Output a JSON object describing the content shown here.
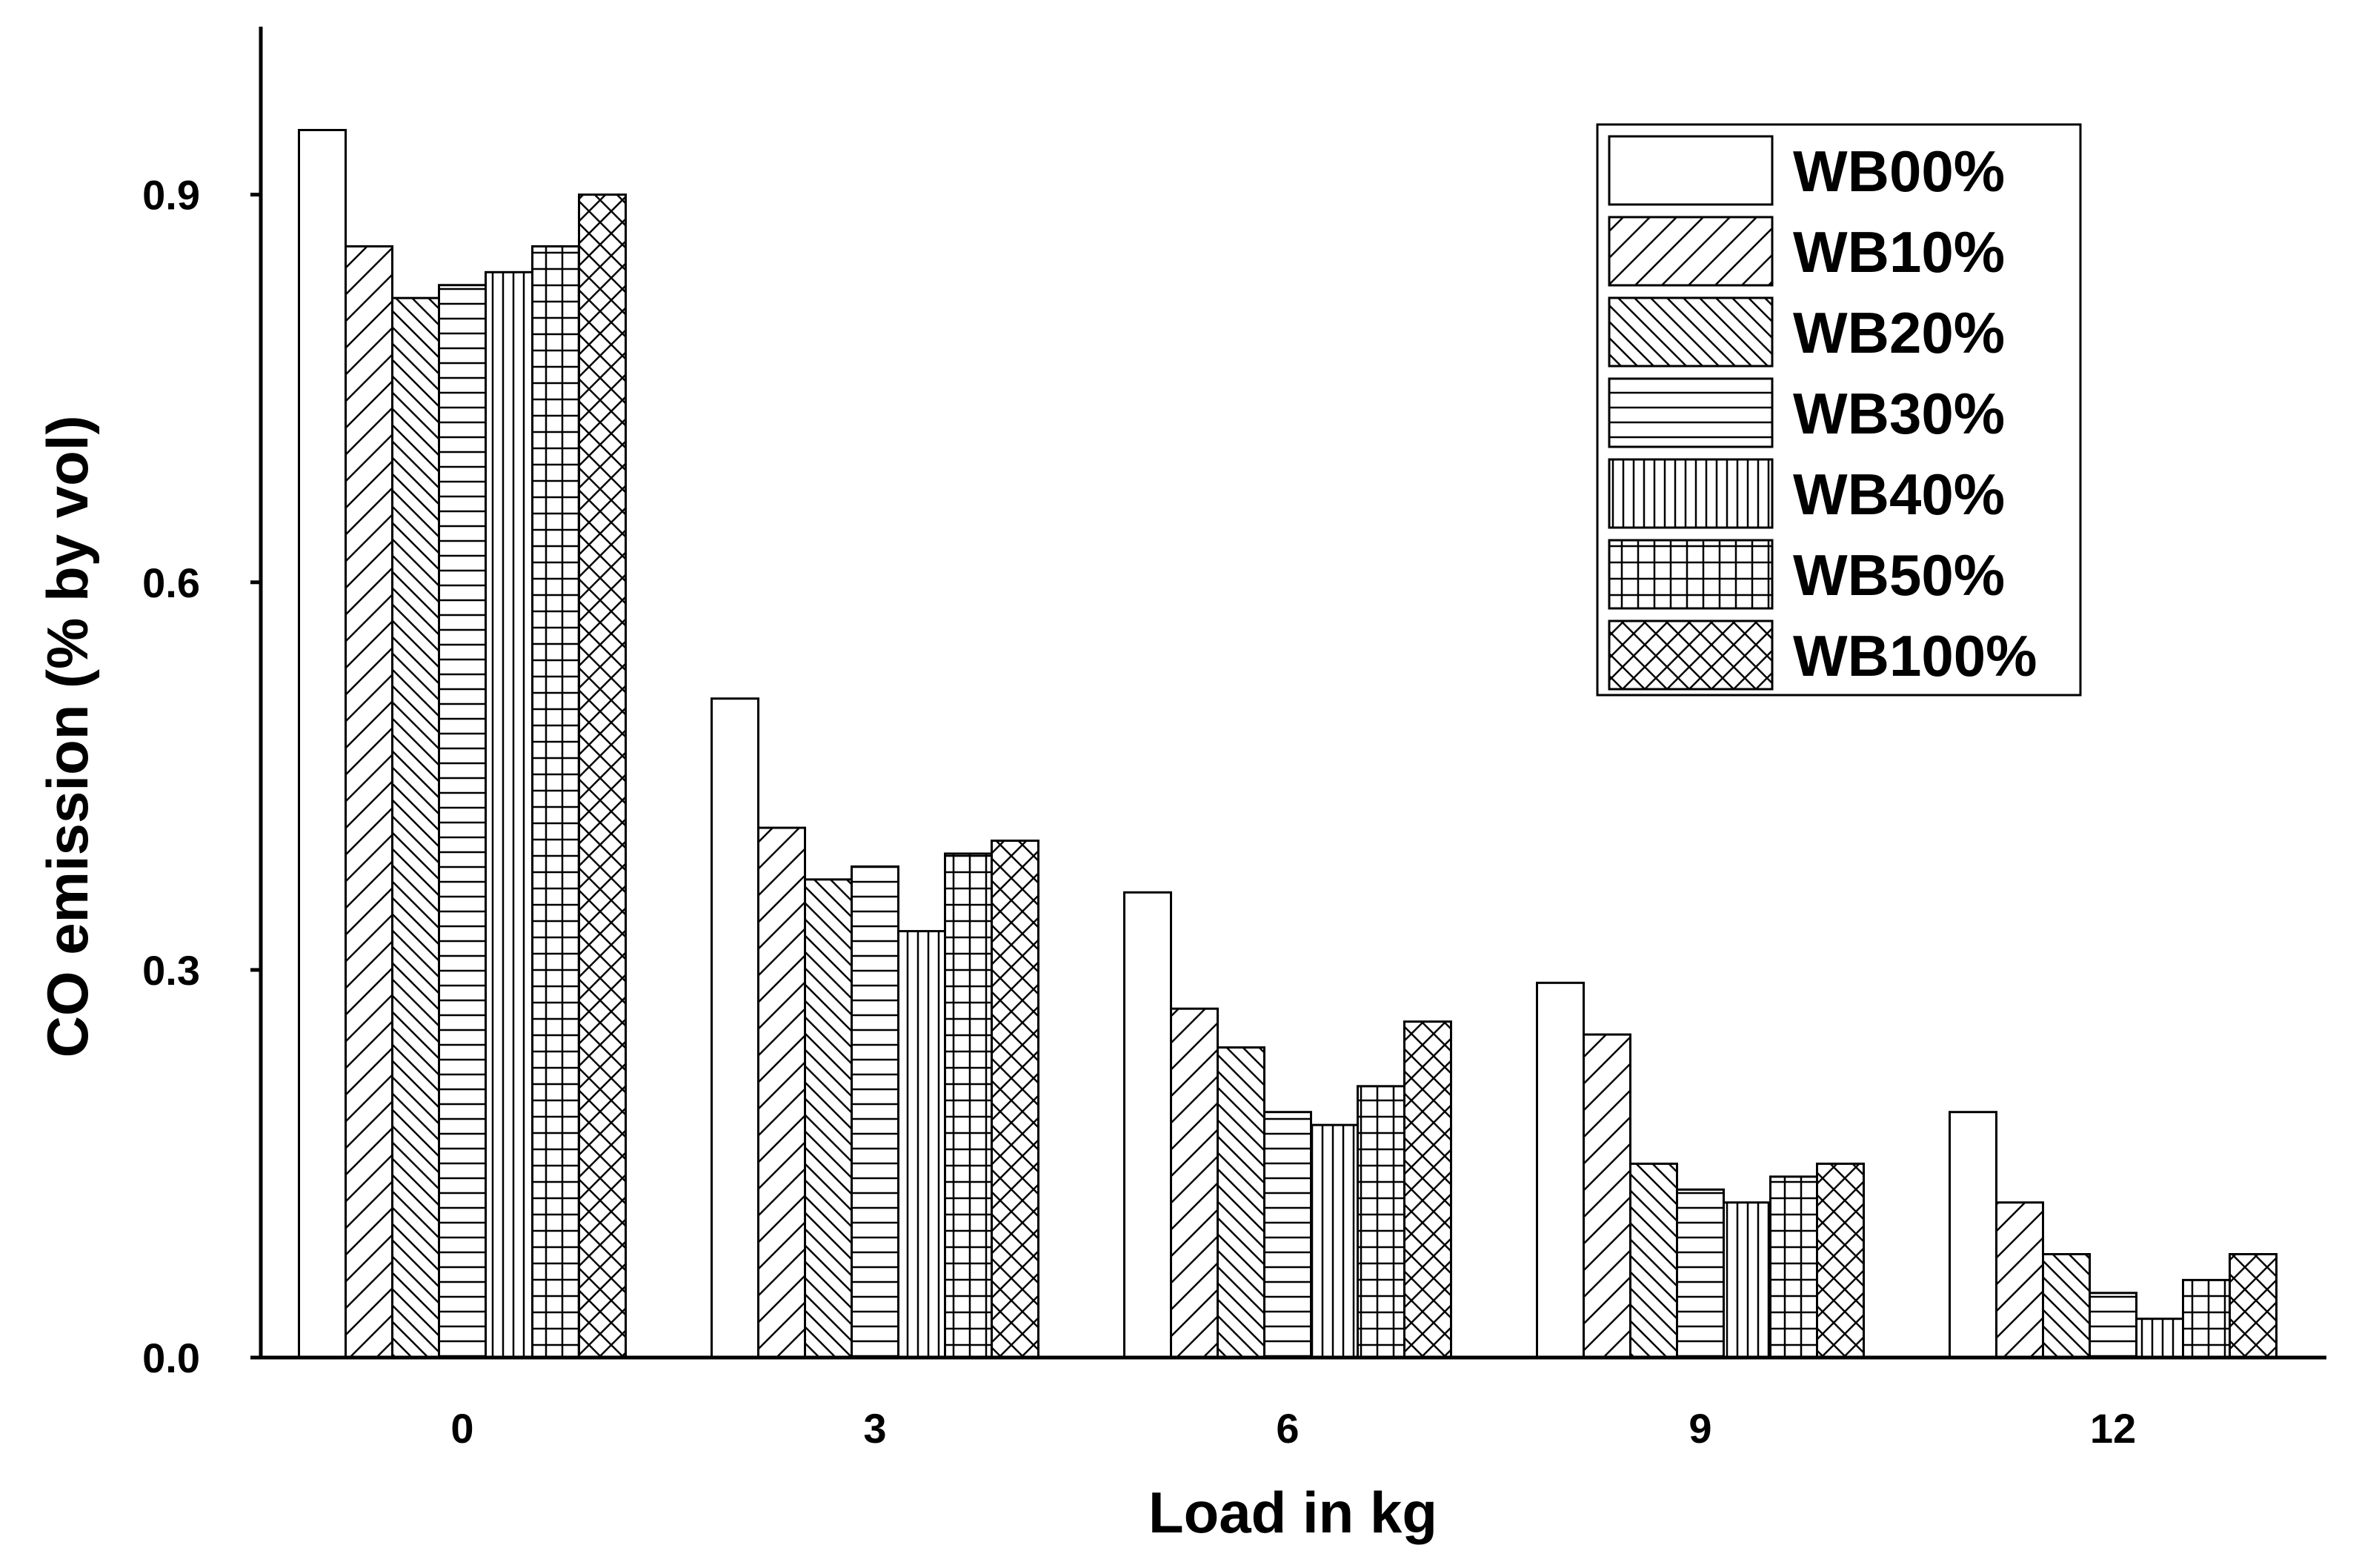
{
  "chart_data": {
    "type": "bar",
    "title": "",
    "xlabel": "Load in kg",
    "ylabel": "CO emission (% by vol)",
    "categories": [
      "0",
      "3",
      "6",
      "9",
      "12"
    ],
    "ylim": [
      0,
      1.03
    ],
    "yticks": [
      "0.0",
      "0.3",
      "0.6",
      "0.9"
    ],
    "ytick_values": [
      0,
      0.3,
      0.6,
      0.9
    ],
    "legend_position": "top-right",
    "series": [
      {
        "name": "WB00%",
        "pattern": "none",
        "values": [
          0.95,
          0.51,
          0.36,
          0.29,
          0.19
        ]
      },
      {
        "name": "WB10%",
        "pattern": "diag-forward",
        "values": [
          0.86,
          0.41,
          0.27,
          0.25,
          0.12
        ]
      },
      {
        "name": "WB20%",
        "pattern": "diag-backward",
        "values": [
          0.82,
          0.37,
          0.24,
          0.15,
          0.08
        ]
      },
      {
        "name": "WB30%",
        "pattern": "horizontal",
        "values": [
          0.83,
          0.38,
          0.19,
          0.13,
          0.05
        ]
      },
      {
        "name": "WB40%",
        "pattern": "vertical",
        "values": [
          0.84,
          0.33,
          0.18,
          0.12,
          0.03
        ]
      },
      {
        "name": "WB50%",
        "pattern": "grid",
        "values": [
          0.86,
          0.39,
          0.21,
          0.14,
          0.06
        ]
      },
      {
        "name": "WB100%",
        "pattern": "crosshatch",
        "values": [
          0.9,
          0.4,
          0.26,
          0.15,
          0.08
        ]
      }
    ],
    "colors": {
      "stroke": "#000000",
      "fill": "#ffffff"
    }
  }
}
